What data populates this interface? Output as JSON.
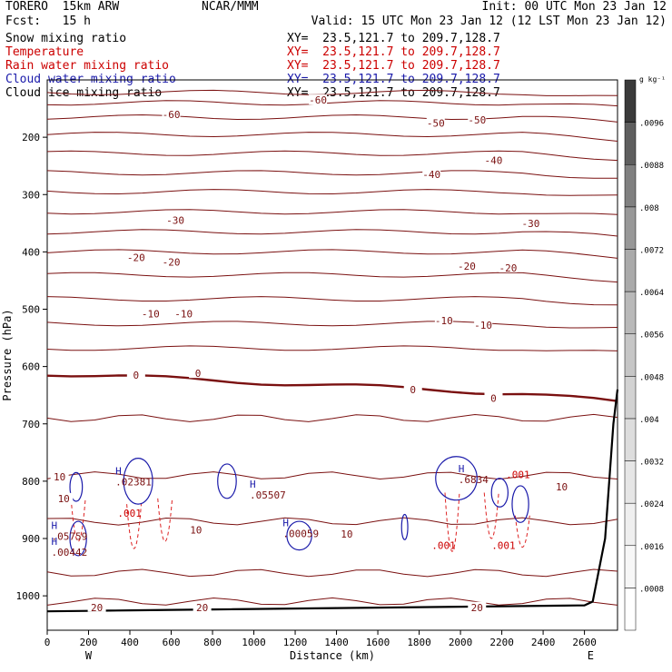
{
  "header": {
    "model": "TORERO  15km ARW",
    "center": "NCAR/MMM",
    "init": "Init: 00 UTC Mon 23 Jan 12",
    "fcst": "Fcst:   15 h",
    "valid": "Valid: 15 UTC Mon 23 Jan 12 (12 LST Mon 23 Jan 12)"
  },
  "fields": [
    {
      "name": "Snow mixing ratio",
      "xy": "XY=  23.5,121.7 to 209.7,128.7",
      "color": "#000000"
    },
    {
      "name": "Temperature",
      "xy": "XY=  23.5,121.7 to 209.7,128.7",
      "color": "#cc0000"
    },
    {
      "name": "Rain water mixing ratio",
      "xy": "XY=  23.5,121.7 to 209.7,128.7",
      "color": "#cc0000"
    },
    {
      "name": "Cloud water mixing ratio",
      "xy": "XY=  23.5,121.7 to 209.7,128.7",
      "color": "#1a1aaa"
    },
    {
      "name": "Cloud ice mixing ratio",
      "xy": "XY=  23.5,121.7 to 209.7,128.7",
      "color": "#000000"
    }
  ],
  "chart_data": {
    "type": "contour cross-section",
    "xlabel": "Distance (km)",
    "ylabel": "Pressure (hPa)",
    "xlim": [
      0,
      2760
    ],
    "ylim": [
      1060,
      100
    ],
    "x_ticks": [
      0,
      200,
      400,
      600,
      800,
      1000,
      1200,
      1400,
      1600,
      1800,
      2000,
      2200,
      2400,
      2600
    ],
    "y_ticks": [
      200,
      300,
      400,
      500,
      600,
      700,
      800,
      900,
      1000
    ],
    "x_end_labels": {
      "left": "W",
      "right": "E"
    },
    "colorbar": {
      "unit": "g kg⁻¹",
      "levels": [
        ".0008",
        ".0016",
        ".0024",
        ".0032",
        ".004",
        ".0048",
        ".0056",
        ".0064",
        ".0072",
        ".008",
        ".0088",
        ".0096"
      ],
      "colors": [
        "#ffffff",
        "#f7f7f7",
        "#efefef",
        "#e6e6e6",
        "#dddddd",
        "#d2d2d2",
        "#c6c6c6",
        "#b9b9b9",
        "#aaaaaa",
        "#989898",
        "#808080",
        "#5e5e5e",
        "#3a3a3a"
      ]
    },
    "temperature_labels": [
      {
        "t": "-60",
        "x": 1310,
        "p": 135
      },
      {
        "t": "-60",
        "x": 600,
        "p": 160
      },
      {
        "t": "-50",
        "x": 1880,
        "p": 175
      },
      {
        "t": "-50",
        "x": 2080,
        "p": 170
      },
      {
        "t": "-40",
        "x": 1860,
        "p": 265
      },
      {
        "t": "-40",
        "x": 2160,
        "p": 240
      },
      {
        "t": "-30",
        "x": 620,
        "p": 345
      },
      {
        "t": "-30",
        "x": 2340,
        "p": 350
      },
      {
        "t": "-20",
        "x": 430,
        "p": 410
      },
      {
        "t": "-20",
        "x": 600,
        "p": 418
      },
      {
        "t": "-20",
        "x": 2030,
        "p": 425
      },
      {
        "t": "-20",
        "x": 2230,
        "p": 428
      },
      {
        "t": "-10",
        "x": 500,
        "p": 508
      },
      {
        "t": "-10",
        "x": 660,
        "p": 508
      },
      {
        "t": "-10",
        "x": 1920,
        "p": 520
      },
      {
        "t": "-10",
        "x": 2110,
        "p": 528
      },
      {
        "t": "0",
        "x": 430,
        "p": 615
      },
      {
        "t": "0",
        "x": 730,
        "p": 612
      },
      {
        "t": "0",
        "x": 1770,
        "p": 640
      },
      {
        "t": "0",
        "x": 2160,
        "p": 655
      },
      {
        "t": "10",
        "x": 60,
        "p": 792
      },
      {
        "t": "10",
        "x": 80,
        "p": 830
      },
      {
        "t": "10",
        "x": 720,
        "p": 885
      },
      {
        "t": "10",
        "x": 1450,
        "p": 892
      },
      {
        "t": "10",
        "x": 2490,
        "p": 810
      },
      {
        "t": "20",
        "x": 240,
        "p": 1020
      },
      {
        "t": "20",
        "x": 750,
        "p": 1020
      },
      {
        "t": "20",
        "x": 2080,
        "p": 1020
      }
    ],
    "maxima_labels": [
      {
        "label": "H",
        "value": ".02381",
        "x": 330,
        "p": 807
      },
      {
        "label": "H",
        "value": ".05507",
        "x": 980,
        "p": 830
      },
      {
        "label": "H",
        "value": ".00059",
        "x": 1140,
        "p": 898
      },
      {
        "label": "H",
        "value": ".05759",
        "x": 20,
        "p": 902
      },
      {
        "label": "H",
        "value": ".00442",
        "x": 20,
        "p": 930
      },
      {
        "label": "H",
        "value": ".6834",
        "x": 1990,
        "p": 803
      },
      {
        "label": "",
        "value": ".001",
        "x": 2220,
        "p": 795
      },
      {
        "label": "",
        "value": ".001",
        "x": 340,
        "p": 862
      },
      {
        "label": "",
        "value": ".001",
        "x": 1860,
        "p": 918
      },
      {
        "label": "",
        "value": ".001",
        "x": 2150,
        "p": 918
      }
    ]
  }
}
